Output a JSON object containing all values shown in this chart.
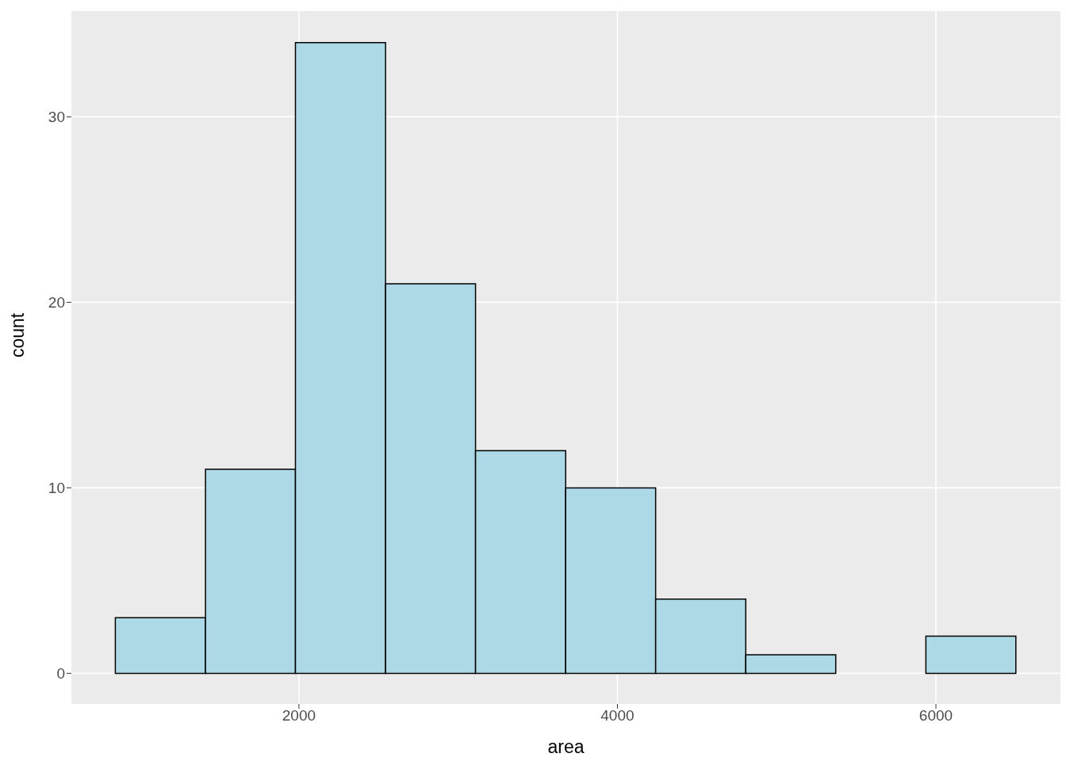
{
  "chart_data": {
    "type": "histogram",
    "xlabel": "area",
    "ylabel": "count",
    "bins": [
      847,
      1413,
      1978,
      2544,
      3109,
      3675,
      4240,
      4806,
      5371,
      5937,
      6502
    ],
    "values": [
      3,
      11,
      34,
      21,
      12,
      10,
      4,
      1,
      0,
      2
    ],
    "color": "#add8e6",
    "xlim": [
      571,
      6782
    ],
    "xticks": [
      2000,
      4000,
      6000
    ],
    "ylim": [
      -1.65,
      35.7
    ],
    "yticks": [
      0,
      10,
      20,
      30
    ],
    "grid": true
  }
}
